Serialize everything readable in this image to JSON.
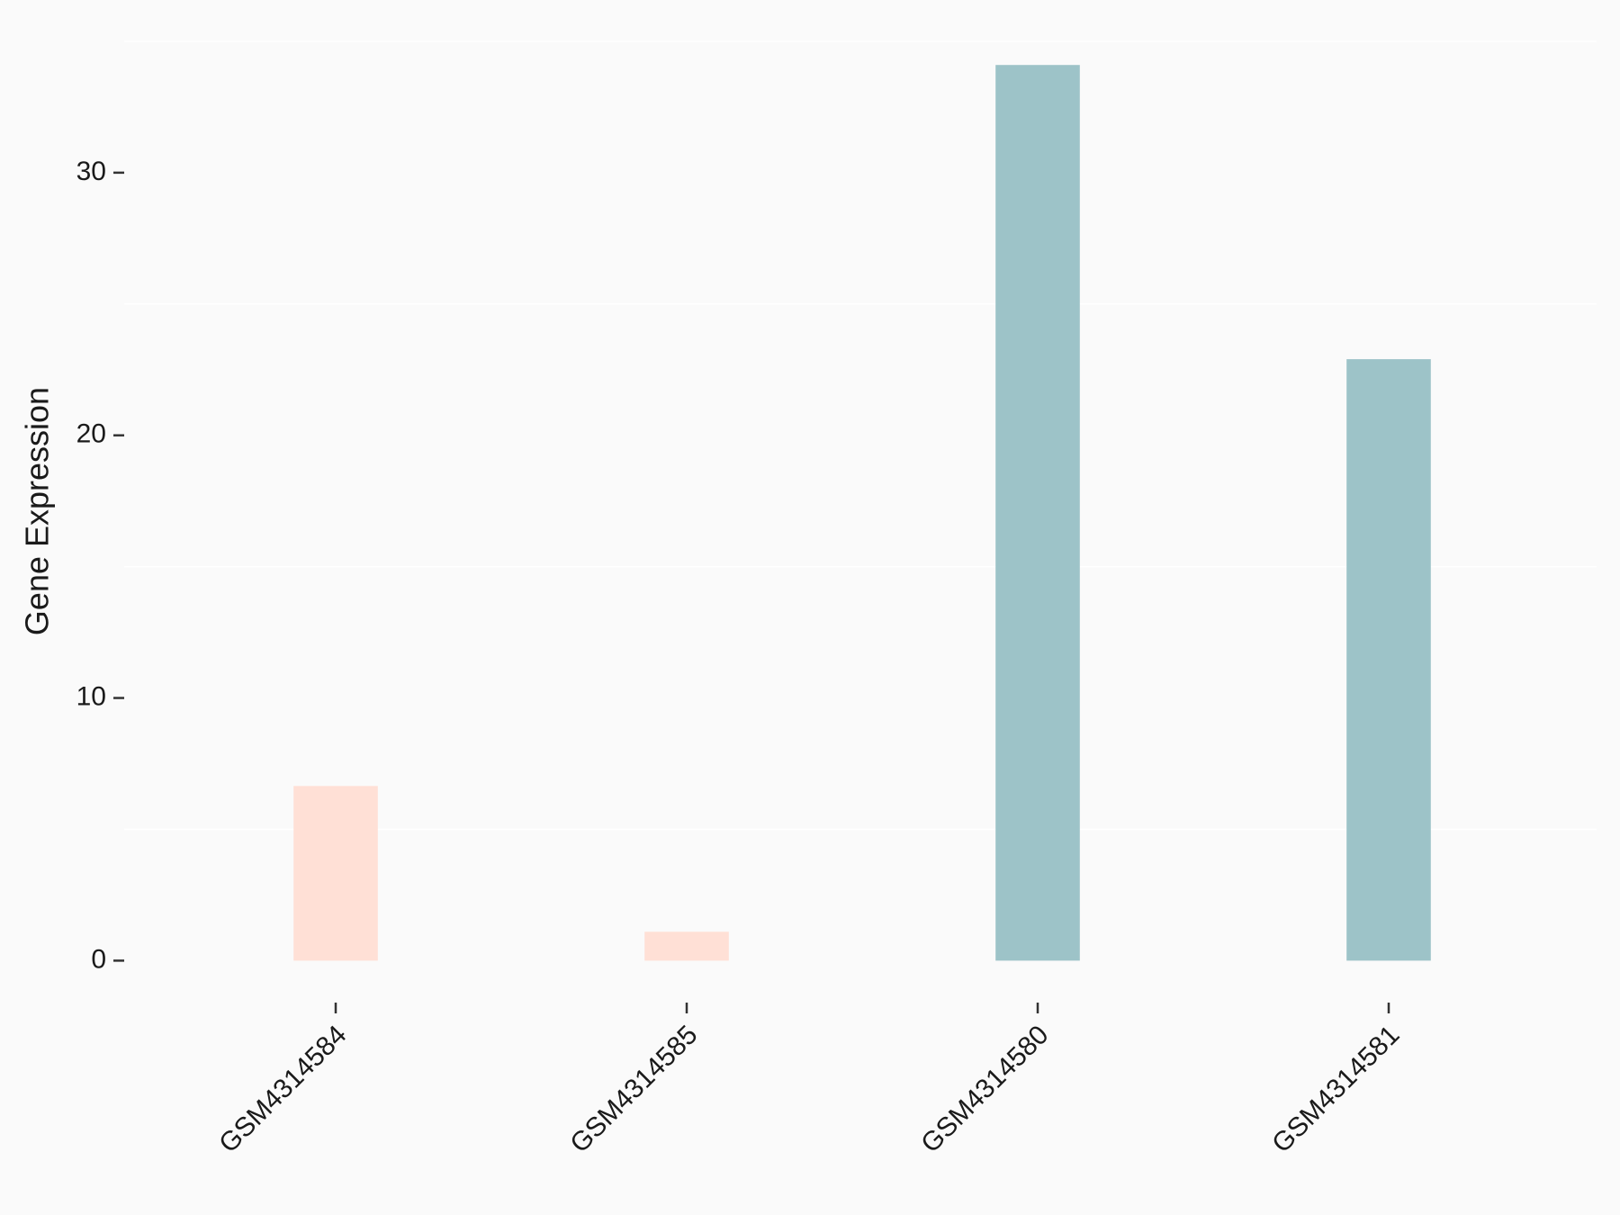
{
  "chart_data": {
    "type": "bar",
    "y_label": "Gene Expression",
    "categories": [
      "GSM4314584",
      "GSM4314585",
      "GSM4314580",
      "GSM4314581"
    ],
    "values": [
      6.65,
      1.1,
      34.1,
      22.9
    ],
    "colors": [
      "#ffe0d6",
      "#ffe0d6",
      "#9dc3c8",
      "#9dc3c8"
    ],
    "ylim": [
      -1.7,
      35.8
    ],
    "yticks": [
      0,
      10,
      20,
      30
    ],
    "minor_grid": [
      5,
      15,
      25,
      35
    ]
  }
}
